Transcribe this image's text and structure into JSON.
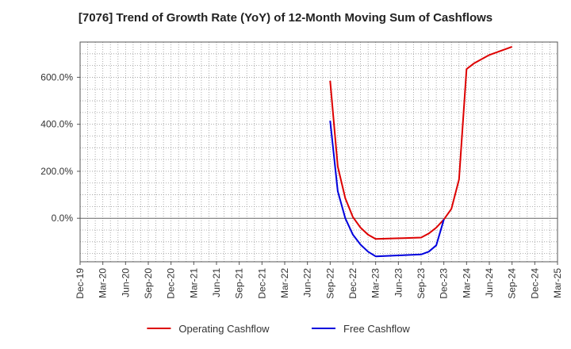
{
  "chart_data": {
    "type": "line",
    "title": "[7076]  Trend of Growth Rate (YoY) of 12-Month Moving Sum of Cashflows",
    "xlabel": "",
    "ylabel": "",
    "x_tick_labels": [
      "Dec-19",
      "Mar-20",
      "Jun-20",
      "Sep-20",
      "Dec-20",
      "Mar-21",
      "Jun-21",
      "Sep-21",
      "Dec-21",
      "Mar-22",
      "Jun-22",
      "Sep-22",
      "Dec-22",
      "Mar-23",
      "Jun-23",
      "Sep-23",
      "Dec-23",
      "Mar-24",
      "Jun-24",
      "Sep-24",
      "Dec-24",
      "Mar-25"
    ],
    "y_ticks": [
      0,
      200,
      400,
      600
    ],
    "y_tick_labels": [
      "0.0%",
      "200.0%",
      "400.0%",
      "600.0%"
    ],
    "ylim": [
      -185,
      750
    ],
    "grid": true,
    "legend_position": "bottom",
    "series": [
      {
        "name": "Operating Cashflow",
        "color": "#dd0000",
        "points": [
          [
            "Sep-22",
            585
          ],
          [
            "Oct-22",
            220
          ],
          [
            "Nov-22",
            85
          ],
          [
            "Dec-22",
            5
          ],
          [
            "Jan-23",
            -40
          ],
          [
            "Feb-23",
            -70
          ],
          [
            "Mar-23",
            -88
          ],
          [
            "Jun-23",
            -85
          ],
          [
            "Sep-23",
            -82
          ],
          [
            "Oct-23",
            -65
          ],
          [
            "Nov-23",
            -40
          ],
          [
            "Dec-23",
            -5
          ],
          [
            "Jan-24",
            40
          ],
          [
            "Feb-24",
            165
          ],
          [
            "Mar-24",
            635
          ],
          [
            "Apr-24",
            660
          ],
          [
            "Jun-24",
            695
          ],
          [
            "Sep-24",
            730
          ]
        ]
      },
      {
        "name": "Free Cashflow",
        "color": "#0000dd",
        "points": [
          [
            "Sep-22",
            415
          ],
          [
            "Oct-22",
            115
          ],
          [
            "Nov-22",
            0
          ],
          [
            "Dec-22",
            -70
          ],
          [
            "Jan-23",
            -112
          ],
          [
            "Feb-23",
            -142
          ],
          [
            "Mar-23",
            -162
          ],
          [
            "Jun-23",
            -158
          ],
          [
            "Sep-23",
            -154
          ],
          [
            "Oct-23",
            -142
          ],
          [
            "Nov-23",
            -115
          ],
          [
            "Dec-23",
            -5
          ]
        ]
      }
    ]
  }
}
